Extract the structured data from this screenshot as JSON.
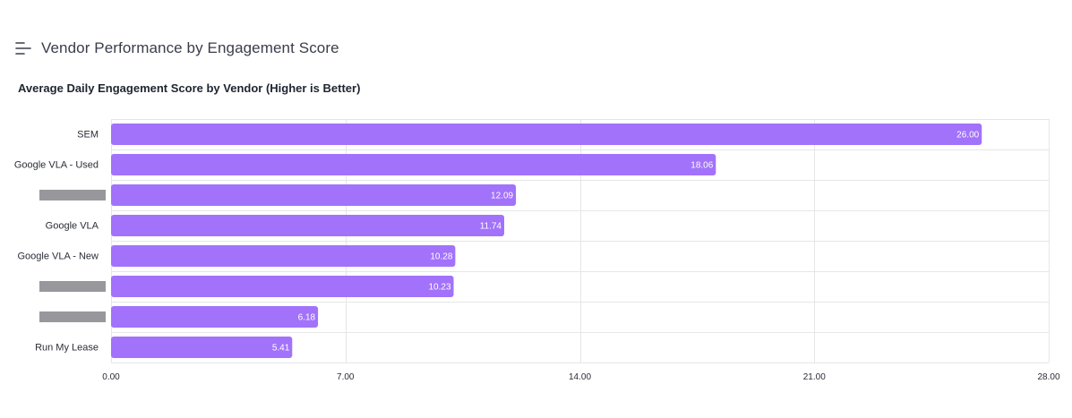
{
  "header": {
    "title": "Vendor Performance by Engagement Score",
    "icon": "menu-lines-icon"
  },
  "chart_data": {
    "type": "bar",
    "orientation": "horizontal",
    "title": "Average Daily Engagement Score by Vendor (Higher is Better)",
    "xlabel": "",
    "ylabel": "",
    "categories": [
      "SEM",
      "Google VLA - Used",
      "",
      "Google VLA",
      "Google VLA - New",
      "",
      "",
      "Run My Lease"
    ],
    "redacted": [
      false,
      false,
      true,
      false,
      false,
      true,
      true,
      false
    ],
    "values": [
      26.0,
      18.06,
      12.09,
      11.74,
      10.28,
      10.23,
      6.18,
      5.41
    ],
    "value_labels": [
      "26.00",
      "18.06",
      "12.09",
      "11.74",
      "10.28",
      "10.23",
      "6.18",
      "5.41"
    ],
    "xlim": [
      0,
      28
    ],
    "ticks": [
      0,
      7,
      14,
      21,
      28
    ],
    "tick_labels": [
      "0.00",
      "7.00",
      "14.00",
      "21.00",
      "28.00"
    ],
    "grid": true,
    "bar_color": "#a272fb"
  }
}
